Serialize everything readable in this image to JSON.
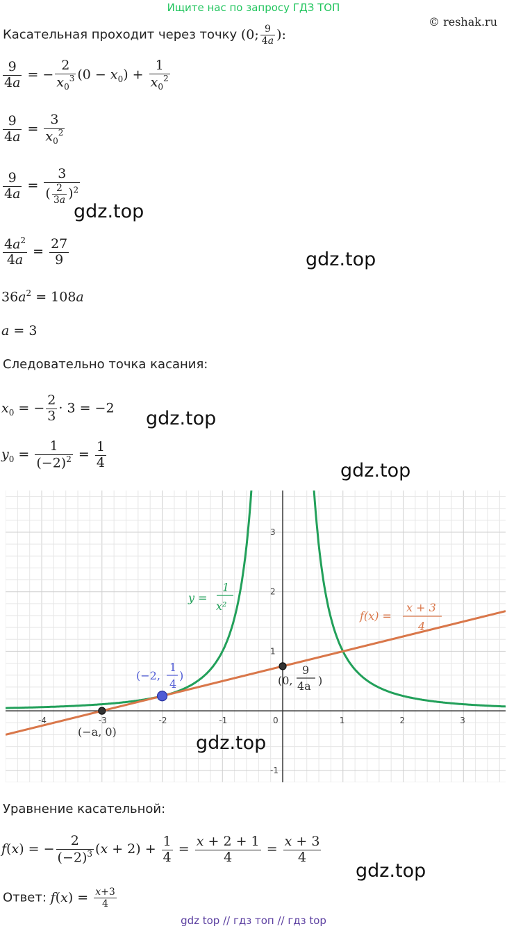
{
  "banner": "Ищите нас по запросу ГДЗ ТОП",
  "copyright": "© reshak.ru",
  "intro_text": "Касательная проходит через точку",
  "point_text": "Следовательно точка касания:",
  "equation_heading": "Уравнение касательной:",
  "answer_label": "Ответ:",
  "watermark": "gdz.top",
  "footer": "gdz top  //  гдз топ  //  гдз top",
  "graph": {
    "x_ticks": [
      "-4",
      "-3",
      "-2",
      "-1",
      "0",
      "1",
      "2",
      "3"
    ],
    "y_ticks": [
      "-1",
      "1",
      "2",
      "3"
    ],
    "curve_label": "y =",
    "tangent_label": "f(x) =",
    "point_neg2_label": "(−2,",
    "point_neg2_frac_num": "1",
    "point_neg2_frac_den": "4",
    "point_zero_label": "(0,",
    "point_zero_frac_num": "9",
    "point_zero_frac_den": "4a",
    "point_neg_a_label": "(−a, 0)",
    "colors": {
      "curve": "#22a05a",
      "tangent": "#d9774a",
      "point_neg2": "#4f5bd5",
      "point_dark": "#333333",
      "grid": "#e6e6e6",
      "grid_major": "#cfcfcf"
    }
  },
  "chart_data": {
    "type": "line",
    "xlim": [
      -4.6,
      3.7
    ],
    "ylim": [
      -1.2,
      3.7
    ],
    "grid": true,
    "series": [
      {
        "name": "y = 1/x²",
        "formula": "1/x^2"
      },
      {
        "name": "f(x) = (x+3)/4",
        "formula": "(x+3)/4"
      }
    ],
    "points": [
      {
        "x": -2,
        "y": 0.25
      },
      {
        "x": 0,
        "y": 0.75
      },
      {
        "x": -3,
        "y": 0
      }
    ]
  }
}
